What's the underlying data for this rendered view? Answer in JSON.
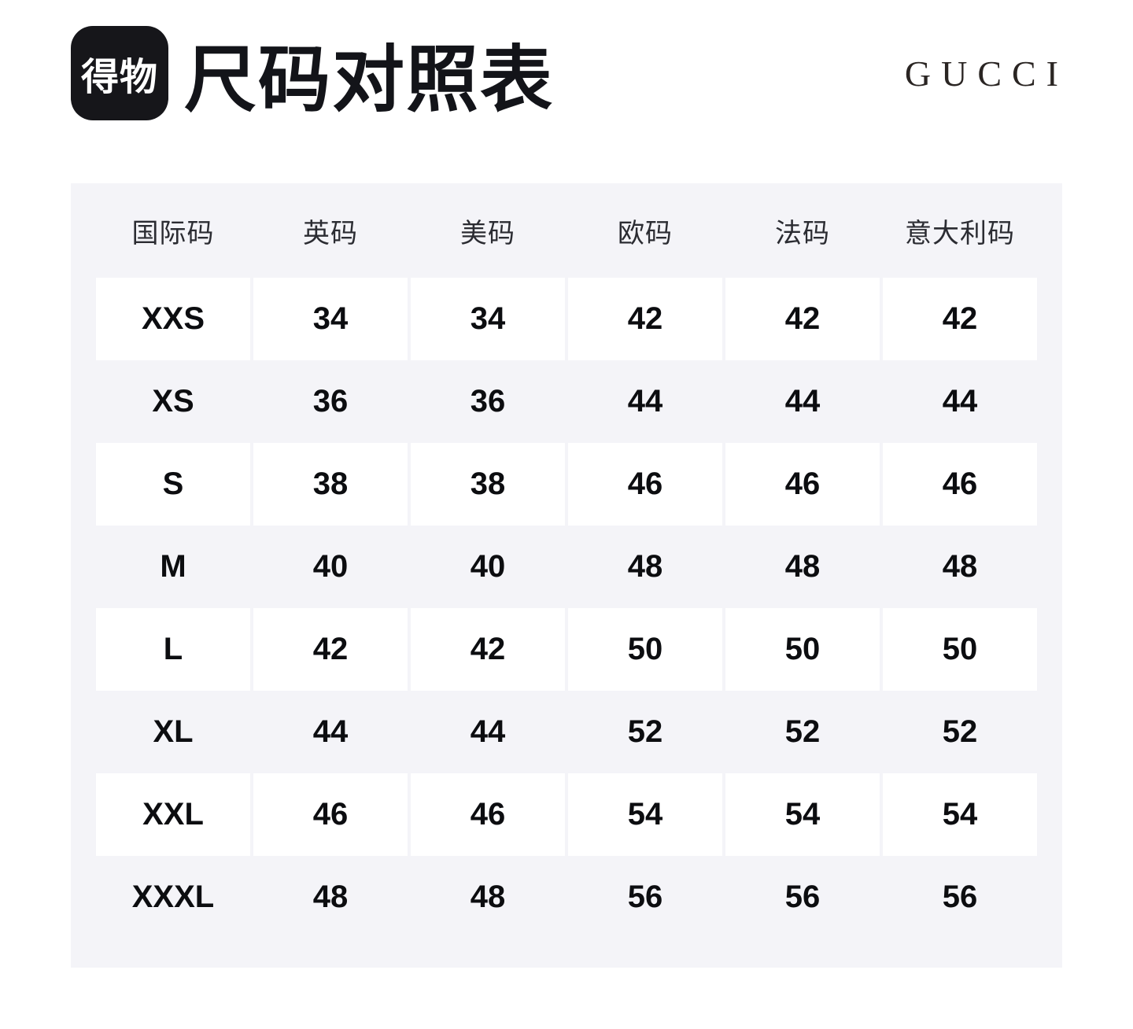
{
  "header": {
    "logo_text": "得物",
    "title": "尺码对照表",
    "brand": "GUCCI"
  },
  "chart_data": {
    "type": "table",
    "title": "尺码对照表",
    "brand": "GUCCI",
    "columns": [
      "国际码",
      "英码",
      "美码",
      "欧码",
      "法码",
      "意大利码"
    ],
    "rows": [
      [
        "XXS",
        "34",
        "34",
        "42",
        "42",
        "42"
      ],
      [
        "XS",
        "36",
        "36",
        "44",
        "44",
        "44"
      ],
      [
        "S",
        "38",
        "38",
        "46",
        "46",
        "46"
      ],
      [
        "M",
        "40",
        "40",
        "48",
        "48",
        "48"
      ],
      [
        "L",
        "42",
        "42",
        "50",
        "50",
        "50"
      ],
      [
        "XL",
        "44",
        "44",
        "52",
        "52",
        "52"
      ],
      [
        "XXL",
        "46",
        "46",
        "54",
        "54",
        "54"
      ],
      [
        "XXXL",
        "48",
        "48",
        "56",
        "56",
        "56"
      ]
    ]
  },
  "colors": {
    "panel_bg": "#f4f4f8",
    "row_bg": "#ffffff",
    "logo_bg": "#16161a",
    "text": "#0c0d10"
  }
}
